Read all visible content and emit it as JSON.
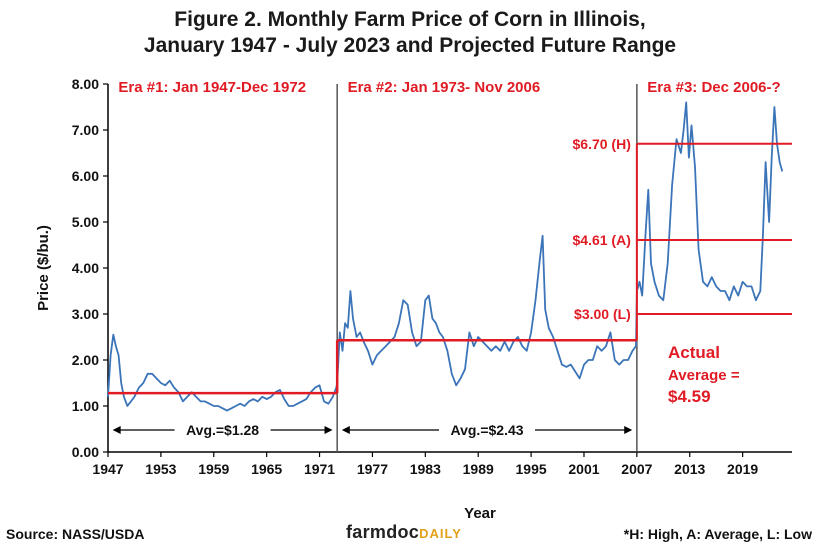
{
  "chart_data": {
    "type": "line",
    "title_line1": "Figure 2. Monthly Farm Price of Corn in Illinois,",
    "title_line2": "January 1947 - July 2023 and Projected Future Range",
    "xlabel": "Year",
    "ylabel": "Price ($/bu.)",
    "xlim": [
      1947,
      2024.6
    ],
    "ylim": [
      0,
      8
    ],
    "x_ticks": [
      "1947",
      "1953",
      "1959",
      "1965",
      "1971",
      "1977",
      "1983",
      "1989",
      "1995",
      "2001",
      "2007",
      "2013",
      "2019"
    ],
    "y_ticks": [
      "0.00",
      "1.00",
      "2.00",
      "3.00",
      "4.00",
      "5.00",
      "6.00",
      "7.00",
      "8.00"
    ],
    "series": [
      {
        "x": [
          1947.0,
          1947.3,
          1947.6,
          1947.9,
          1948.2,
          1948.5,
          1948.8,
          1949.2,
          1949.6,
          1950.0,
          1950.5,
          1951.0,
          1951.5,
          1952.0,
          1952.5,
          1953.0,
          1953.5,
          1954.0,
          1954.5,
          1955.0,
          1955.5,
          1956.0,
          1956.5,
          1957.0,
          1957.5,
          1958.0,
          1958.5,
          1959.0,
          1959.5,
          1960.0,
          1960.5,
          1961.0,
          1961.5,
          1962.0,
          1962.5,
          1963.0,
          1963.5,
          1964.0,
          1964.5,
          1965.0,
          1965.5,
          1966.0,
          1966.5,
          1967.0,
          1967.5,
          1968.0,
          1968.5,
          1969.0,
          1969.5,
          1970.0,
          1970.5,
          1971.0,
          1971.5,
          1972.0,
          1972.5,
          1972.9,
          1973.0,
          1973.3,
          1973.6,
          1973.9,
          1974.2,
          1974.5,
          1974.8,
          1975.2,
          1975.6,
          1976.0,
          1976.5,
          1977.0,
          1977.5,
          1978.0,
          1978.5,
          1979.0,
          1979.5,
          1980.0,
          1980.5,
          1981.0,
          1981.5,
          1982.0,
          1982.5,
          1983.0,
          1983.4,
          1983.8,
          1984.2,
          1984.6,
          1985.0,
          1985.5,
          1986.0,
          1986.5,
          1987.0,
          1987.5,
          1988.0,
          1988.5,
          1989.0,
          1989.5,
          1990.0,
          1990.5,
          1991.0,
          1991.5,
          1992.0,
          1992.5,
          1993.0,
          1993.5,
          1994.0,
          1994.5,
          1995.0,
          1995.5,
          1996.0,
          1996.3,
          1996.6,
          1997.0,
          1997.5,
          1998.0,
          1998.5,
          1999.0,
          1999.5,
          2000.0,
          2000.5,
          2001.0,
          2001.5,
          2002.0,
          2002.5,
          2003.0,
          2003.5,
          2004.0,
          2004.5,
          2005.0,
          2005.5,
          2006.0,
          2006.5,
          2006.9,
          2007.0,
          2007.3,
          2007.6,
          2008.0,
          2008.3,
          2008.6,
          2009.0,
          2009.5,
          2010.0,
          2010.5,
          2011.0,
          2011.5,
          2012.0,
          2012.3,
          2012.6,
          2012.9,
          2013.2,
          2013.6,
          2014.0,
          2014.5,
          2015.0,
          2015.5,
          2016.0,
          2016.5,
          2017.0,
          2017.5,
          2018.0,
          2018.5,
          2019.0,
          2019.5,
          2020.0,
          2020.5,
          2021.0,
          2021.3,
          2021.6,
          2022.0,
          2022.3,
          2022.6,
          2022.9,
          2023.2,
          2023.5
        ],
        "values": [
          1.2,
          2.1,
          2.55,
          2.3,
          2.1,
          1.5,
          1.2,
          1.0,
          1.1,
          1.2,
          1.4,
          1.5,
          1.7,
          1.7,
          1.6,
          1.5,
          1.45,
          1.55,
          1.4,
          1.3,
          1.1,
          1.2,
          1.3,
          1.2,
          1.1,
          1.1,
          1.05,
          1.0,
          1.0,
          0.95,
          0.9,
          0.95,
          1.0,
          1.05,
          1.0,
          1.1,
          1.15,
          1.1,
          1.2,
          1.15,
          1.2,
          1.3,
          1.35,
          1.15,
          1.0,
          1.0,
          1.05,
          1.1,
          1.15,
          1.3,
          1.4,
          1.45,
          1.1,
          1.05,
          1.2,
          1.4,
          1.5,
          2.6,
          2.2,
          2.8,
          2.7,
          3.5,
          2.9,
          2.5,
          2.6,
          2.4,
          2.2,
          1.9,
          2.1,
          2.2,
          2.3,
          2.4,
          2.5,
          2.8,
          3.3,
          3.2,
          2.6,
          2.3,
          2.4,
          3.3,
          3.4,
          2.9,
          2.8,
          2.6,
          2.5,
          2.2,
          1.7,
          1.45,
          1.6,
          1.8,
          2.6,
          2.3,
          2.5,
          2.4,
          2.3,
          2.2,
          2.3,
          2.2,
          2.4,
          2.2,
          2.4,
          2.5,
          2.3,
          2.2,
          2.6,
          3.3,
          4.2,
          4.7,
          3.1,
          2.7,
          2.5,
          2.2,
          1.9,
          1.85,
          1.9,
          1.75,
          1.6,
          1.9,
          2.0,
          2.0,
          2.3,
          2.2,
          2.3,
          2.6,
          2.0,
          1.9,
          2.0,
          2.0,
          2.2,
          2.3,
          3.5,
          3.7,
          3.4,
          4.8,
          5.7,
          4.1,
          3.7,
          3.4,
          3.3,
          4.1,
          5.8,
          6.8,
          6.5,
          7.0,
          7.6,
          6.4,
          7.1,
          6.2,
          4.4,
          3.7,
          3.6,
          3.8,
          3.6,
          3.5,
          3.5,
          3.3,
          3.6,
          3.4,
          3.7,
          3.6,
          3.6,
          3.3,
          3.5,
          4.7,
          6.3,
          5.0,
          6.4,
          7.5,
          6.7,
          6.3,
          6.1
        ]
      }
    ],
    "era_dividers": [
      1973.0,
      2007.0
    ],
    "era_labels": [
      {
        "text": "Era #1: Jan 1947-Dec 1972",
        "x": 1947.5,
        "align": "left"
      },
      {
        "text": "Era #2: Jan 1973- Nov 2006",
        "x": 1973.5,
        "align": "left"
      },
      {
        "text": "Era #3: Dec 2006-?",
        "x": 2007.5,
        "align": "left"
      }
    ],
    "average_lines": [
      {
        "x_start": 1947.0,
        "x_end": 1973.0,
        "value": 1.28,
        "label": "Avg.=$1.28"
      },
      {
        "x_start": 1973.0,
        "x_end": 2007.0,
        "value": 2.43,
        "label": "Avg.=$2.43"
      }
    ],
    "range_lines": [
      {
        "value": 6.7,
        "label": "$6.70 (H)"
      },
      {
        "value": 4.61,
        "label": "$4.61 (A)"
      },
      {
        "value": 3.0,
        "label": "$3.00 (L)"
      }
    ],
    "actual_note": {
      "line1": "Actual",
      "line2": "Average =",
      "line3": "$4.59"
    },
    "colors": {
      "series": "#3b74b8",
      "red": "#e01b24",
      "axis": "#000000",
      "divider": "#555555"
    }
  },
  "footer": {
    "source": "Source: NASS/USDA",
    "brand_main": "farmdoc",
    "brand_sub": "DAILY",
    "note": "*H: High, A: Average, L: Low"
  }
}
